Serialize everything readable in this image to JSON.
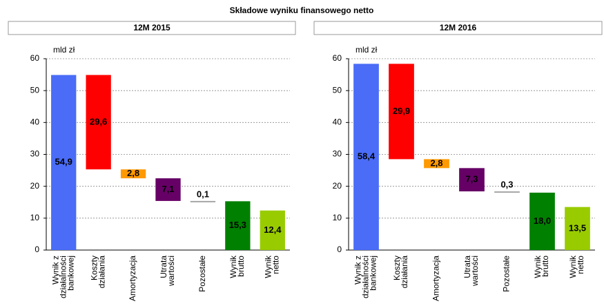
{
  "title": "Składowe wyniku finansowego netto",
  "chart_data": [
    {
      "type": "waterfall",
      "title": "12M 2015",
      "unit_label": "mld zł",
      "categories": [
        [
          "Wynik z",
          "działalności",
          "bankowej"
        ],
        [
          "Koszty",
          "działania"
        ],
        [
          "Amortyzacja"
        ],
        [
          "Utrata",
          "wartości"
        ],
        [
          "Pozostałe"
        ],
        [
          "Wynik",
          "brutto"
        ],
        [
          "Wynik",
          "netto"
        ]
      ],
      "values": [
        54.9,
        29.6,
        2.8,
        7.1,
        0.1,
        15.3,
        12.4
      ],
      "value_labels": [
        "54,9",
        "29,6",
        "2,8",
        "7,1",
        "0,1",
        "15,3",
        "12,4"
      ],
      "measures": [
        "total",
        "decrease",
        "decrease",
        "decrease",
        "decrease",
        "total",
        "total"
      ],
      "colors": [
        "#4a6cf7",
        "#ff0000",
        "#ff9900",
        "#660066",
        "#a6a6a6",
        "#008000",
        "#99cc00"
      ],
      "label_colors": [
        "#ffffff",
        "#ffffff",
        "#000000",
        "#ffffff",
        "#000000",
        "#ffffff",
        "#000000"
      ],
      "ylim": [
        0,
        60
      ],
      "yticks": [
        0,
        10,
        20,
        30,
        40,
        50,
        60
      ],
      "grid": true
    },
    {
      "type": "waterfall",
      "title": "12M 2016",
      "unit_label": "mld zł",
      "categories": [
        [
          "Wynik z",
          "działalności",
          "bankowej"
        ],
        [
          "Koszty",
          "działania"
        ],
        [
          "Amortyzacja"
        ],
        [
          "Utrata",
          "wartości"
        ],
        [
          "Pozostałe"
        ],
        [
          "Wynik",
          "brutto"
        ],
        [
          "Wynik",
          "netto"
        ]
      ],
      "values": [
        58.4,
        29.9,
        2.8,
        7.3,
        0.3,
        18.0,
        13.5
      ],
      "value_labels": [
        "58,4",
        "29,9",
        "2,8",
        "7,3",
        "0,3",
        "18,0",
        "13,5"
      ],
      "measures": [
        "total",
        "decrease",
        "decrease",
        "decrease",
        "decrease",
        "total",
        "total"
      ],
      "colors": [
        "#4a6cf7",
        "#ff0000",
        "#ff9900",
        "#660066",
        "#a6a6a6",
        "#008000",
        "#99cc00"
      ],
      "label_colors": [
        "#ffffff",
        "#ffffff",
        "#000000",
        "#ffffff",
        "#000000",
        "#ffffff",
        "#000000"
      ],
      "ylim": [
        0,
        60
      ],
      "yticks": [
        0,
        10,
        20,
        30,
        40,
        50,
        60
      ],
      "grid": true
    }
  ]
}
